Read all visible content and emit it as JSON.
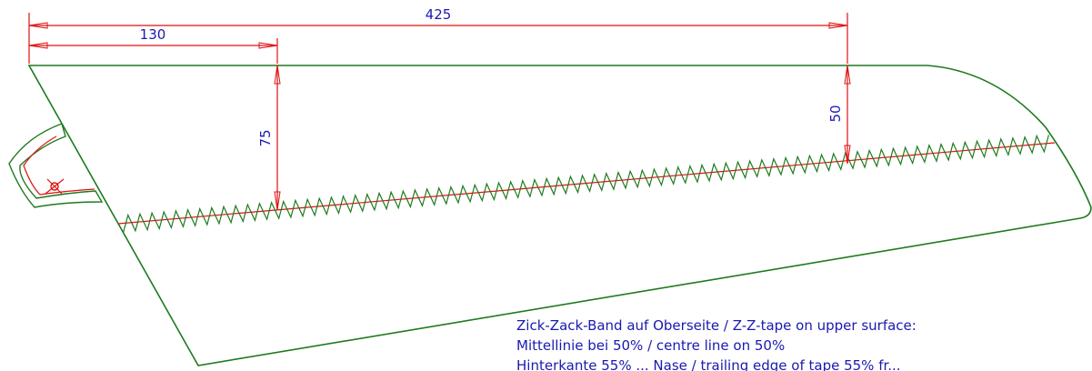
{
  "dimensions": {
    "overall_span": "425",
    "root_offset": "130",
    "root_height": "75",
    "tip_height": "50"
  },
  "notes": {
    "line1": "Zick-Zack-Band auf Oberseite / Z-Z-tape on upper surface:",
    "line2": "Mittellinie bei 50% / centre line on 50%",
    "line3": "Hinterkante 55% ... Nase / trailing edge of tape 55% fr..."
  },
  "colors": {
    "outline": "#1f7a1f",
    "dimension": "#e01010",
    "text": "#1a1ab0"
  }
}
